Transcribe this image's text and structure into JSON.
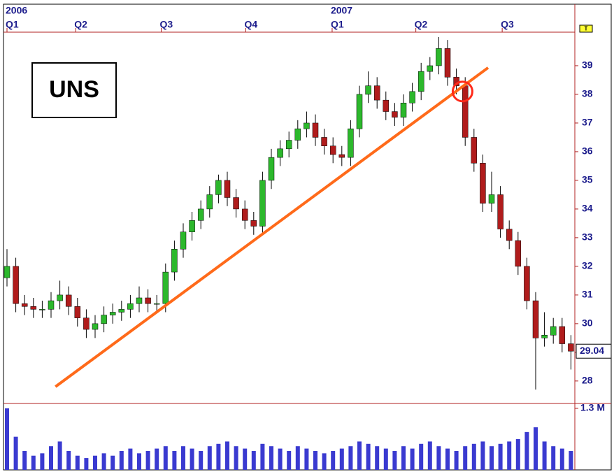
{
  "chart_data": {
    "type": "candlestick",
    "title": "UNS",
    "tag": "T",
    "ylim": [
      27.24,
      40.17
    ],
    "yticks": [
      28,
      29,
      30,
      31,
      32,
      33,
      34,
      35,
      36,
      37,
      38,
      39
    ],
    "xticks": [
      {
        "value": 0,
        "label": "Q1"
      },
      {
        "value": 7.8,
        "label": "Q2"
      },
      {
        "value": 17.5,
        "label": "Q3"
      },
      {
        "value": 27.1,
        "label": "Q4"
      },
      {
        "value": 36.9,
        "label": "Q1"
      },
      {
        "value": 46.4,
        "label": "Q2"
      },
      {
        "value": 56.2,
        "label": "Q3"
      }
    ],
    "year_ticks": [
      {
        "value": 0,
        "label": "2006"
      },
      {
        "value": 36.9,
        "label": "2007"
      }
    ],
    "up_color": "#2cb82c",
    "down_color": "#b01c1c",
    "open": [
      31.6,
      32.0,
      30.7,
      30.6,
      30.5,
      30.5,
      30.8,
      31.0,
      30.6,
      30.2,
      29.8,
      30.0,
      30.3,
      30.4,
      30.5,
      30.7,
      30.9,
      30.7,
      30.7,
      31.8,
      32.6,
      33.2,
      33.6,
      34.0,
      34.5,
      35.0,
      34.4,
      34.0,
      33.6,
      33.4,
      35.0,
      35.8,
      36.1,
      36.4,
      36.8,
      37.0,
      36.5,
      36.2,
      35.9,
      35.8,
      36.8,
      38.0,
      38.3,
      37.8,
      37.4,
      37.2,
      37.7,
      38.1,
      38.8,
      39.0,
      39.6,
      38.6,
      38.3,
      36.5,
      35.6,
      34.2,
      34.5,
      33.3,
      32.9,
      32.0,
      30.8,
      29.5,
      29.6,
      29.9,
      29.3
    ],
    "high": [
      32.6,
      32.3,
      31.0,
      30.9,
      30.8,
      31.1,
      31.5,
      31.3,
      30.9,
      30.5,
      30.3,
      30.6,
      30.7,
      30.8,
      31.0,
      31.3,
      31.2,
      31.0,
      32.1,
      32.9,
      33.5,
      33.9,
      34.3,
      34.8,
      35.2,
      35.3,
      34.7,
      34.3,
      33.9,
      35.3,
      36.1,
      36.4,
      36.7,
      37.1,
      37.4,
      37.3,
      36.8,
      36.5,
      36.2,
      37.1,
      38.3,
      38.8,
      38.6,
      38.1,
      37.7,
      38.0,
      38.4,
      39.1,
      39.3,
      40.0,
      39.9,
      38.9,
      38.6,
      36.8,
      35.9,
      35.3,
      34.8,
      33.6,
      33.2,
      32.3,
      31.1,
      30.4,
      30.2,
      30.2,
      29.6
    ],
    "low": [
      31.3,
      30.4,
      30.3,
      30.2,
      30.2,
      30.2,
      30.5,
      30.3,
      29.9,
      29.5,
      29.5,
      29.7,
      30.0,
      30.1,
      30.2,
      30.4,
      30.4,
      30.4,
      30.4,
      31.5,
      32.3,
      32.9,
      33.3,
      33.7,
      34.2,
      34.1,
      33.7,
      33.3,
      33.1,
      33.1,
      34.7,
      35.5,
      35.8,
      36.1,
      36.5,
      36.2,
      35.9,
      35.6,
      35.5,
      35.5,
      36.5,
      37.7,
      37.5,
      37.1,
      36.9,
      36.9,
      37.4,
      37.8,
      38.5,
      38.7,
      38.3,
      38.0,
      36.2,
      35.3,
      33.9,
      33.9,
      33.0,
      32.6,
      31.7,
      30.5,
      27.7,
      29.2,
      29.3,
      29.0,
      28.4
    ],
    "close": [
      32.0,
      30.7,
      30.6,
      30.5,
      30.5,
      30.8,
      31.0,
      30.6,
      30.2,
      29.8,
      30.0,
      30.3,
      30.4,
      30.5,
      30.7,
      30.9,
      30.7,
      30.7,
      31.8,
      32.6,
      33.2,
      33.6,
      34.0,
      34.5,
      35.0,
      34.4,
      34.0,
      33.6,
      33.4,
      35.0,
      35.8,
      36.1,
      36.4,
      36.8,
      37.0,
      36.5,
      36.2,
      35.9,
      35.8,
      36.8,
      38.0,
      38.3,
      37.8,
      37.4,
      37.2,
      37.7,
      38.1,
      38.8,
      39.0,
      39.6,
      38.6,
      38.3,
      36.5,
      35.6,
      34.2,
      34.5,
      33.3,
      32.9,
      32.0,
      30.8,
      29.5,
      29.6,
      29.9,
      29.3,
      29.04
    ],
    "volume": [
      1.3,
      0.7,
      0.4,
      0.3,
      0.35,
      0.5,
      0.6,
      0.4,
      0.3,
      0.25,
      0.3,
      0.35,
      0.3,
      0.4,
      0.45,
      0.35,
      0.4,
      0.45,
      0.5,
      0.4,
      0.5,
      0.45,
      0.4,
      0.5,
      0.55,
      0.6,
      0.5,
      0.45,
      0.4,
      0.55,
      0.5,
      0.45,
      0.4,
      0.5,
      0.45,
      0.4,
      0.35,
      0.4,
      0.45,
      0.5,
      0.6,
      0.55,
      0.5,
      0.45,
      0.4,
      0.5,
      0.45,
      0.55,
      0.6,
      0.5,
      0.45,
      0.4,
      0.5,
      0.55,
      0.6,
      0.5,
      0.55,
      0.6,
      0.65,
      0.8,
      0.9,
      0.6,
      0.5,
      0.45,
      0.4
    ],
    "volume_color": "#3a3ad0",
    "vlim": [
      0,
      1.3
    ],
    "vticks": [
      {
        "value": 1.3,
        "label": "1.3 M"
      }
    ],
    "trendline": {
      "x": [
        5.5,
        54.6
      ],
      "y": [
        27.8,
        38.93
      ],
      "color": "#ff6a1a"
    },
    "circle": {
      "x": 51.7,
      "y": 38.1,
      "color": "#ff2a1a"
    }
  }
}
